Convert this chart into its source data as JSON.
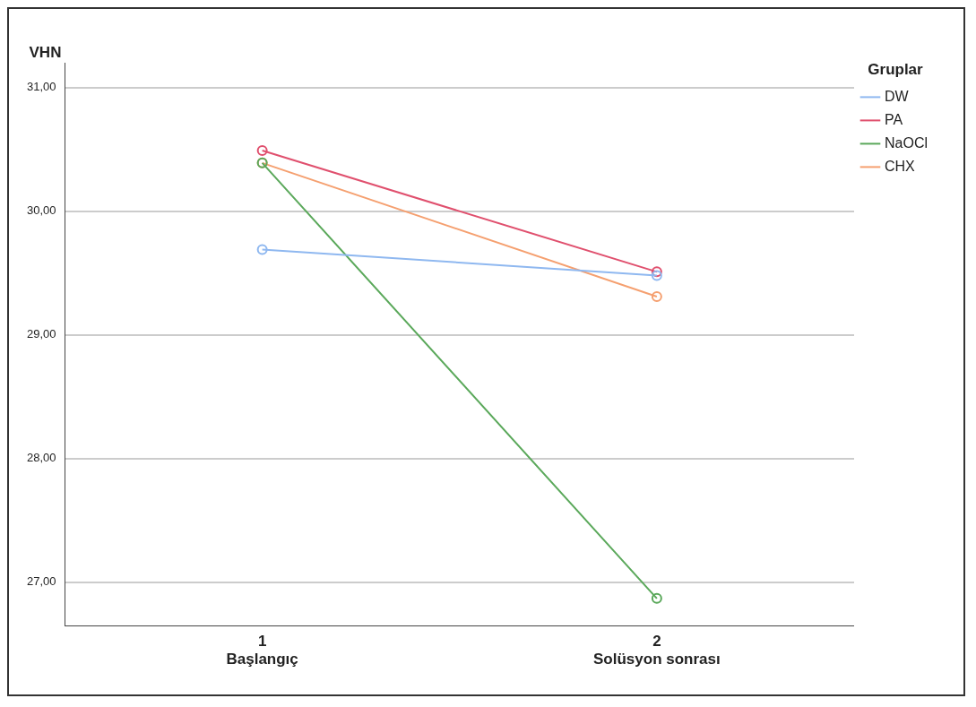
{
  "chart_data": {
    "type": "line",
    "ylabel": "VHN",
    "legend_title": "Gruplar",
    "categories": [
      "1\nBaşlangıç",
      "2\nSolüsyon sonrası"
    ],
    "series": [
      {
        "name": "DW",
        "color": "#8fb8f0",
        "values": [
          29.69,
          29.48
        ]
      },
      {
        "name": "PA",
        "color": "#e0506e",
        "values": [
          30.49,
          29.51
        ]
      },
      {
        "name": "NaOCl",
        "color": "#5aa85a",
        "values": [
          30.39,
          26.87
        ]
      },
      {
        "name": "CHX",
        "color": "#f5a070",
        "values": [
          30.39,
          29.31
        ]
      }
    ],
    "ylim": [
      26.65,
      31.2
    ],
    "yticks": [
      {
        "value": 27,
        "label": "27,00"
      },
      {
        "value": 28,
        "label": "28,00"
      },
      {
        "value": 29,
        "label": "29,00"
      },
      {
        "value": 30,
        "label": "30,00"
      },
      {
        "value": 31,
        "label": "31,00"
      }
    ],
    "grid": "y",
    "legend": "top right",
    "marker": "circle",
    "line_style": "solid"
  }
}
